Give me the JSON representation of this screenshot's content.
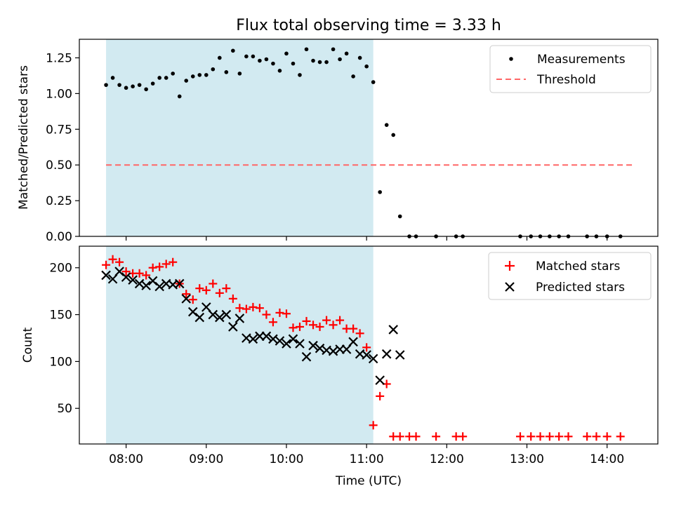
{
  "chart_data": [
    {
      "type": "scatter",
      "title": "Flux total observing time = 3.33 h",
      "xlabel": "",
      "ylabel": "Matched/Predicted stars",
      "ylim": [
        0,
        1.38
      ],
      "yticks": [
        "0.00",
        "0.25",
        "0.50",
        "0.75",
        "1.00",
        "1.25"
      ],
      "shaded_span": {
        "start": "07:45",
        "end": "11:05",
        "color": "#add8e6"
      },
      "legend_position": "top-right",
      "series": [
        {
          "name": "Measurements",
          "marker": "dot",
          "color": "#000000",
          "x": [
            "07:45",
            "07:50",
            "07:55",
            "08:00",
            "08:05",
            "08:10",
            "08:15",
            "08:20",
            "08:25",
            "08:30",
            "08:35",
            "08:40",
            "08:45",
            "08:50",
            "08:55",
            "09:00",
            "09:05",
            "09:10",
            "09:15",
            "09:20",
            "09:25",
            "09:30",
            "09:35",
            "09:40",
            "09:45",
            "09:50",
            "09:55",
            "10:00",
            "10:05",
            "10:10",
            "10:15",
            "10:20",
            "10:25",
            "10:30",
            "10:35",
            "10:40",
            "10:45",
            "10:50",
            "10:55",
            "11:00",
            "11:05",
            "11:10",
            "11:15",
            "11:20",
            "11:25",
            "11:32",
            "11:37",
            "11:52",
            "12:07",
            "12:12",
            "12:55",
            "13:03",
            "13:10",
            "13:17",
            "13:24",
            "13:31",
            "13:45",
            "13:52",
            "14:00",
            "14:10"
          ],
          "y": [
            1.06,
            1.11,
            1.06,
            1.04,
            1.05,
            1.06,
            1.03,
            1.07,
            1.11,
            1.11,
            1.14,
            0.98,
            1.09,
            1.12,
            1.13,
            1.13,
            1.17,
            1.25,
            1.15,
            1.3,
            1.14,
            1.26,
            1.26,
            1.23,
            1.24,
            1.21,
            1.16,
            1.28,
            1.21,
            1.13,
            1.31,
            1.23,
            1.22,
            1.22,
            1.31,
            1.24,
            1.28,
            1.12,
            1.25,
            1.19,
            1.08,
            0.31,
            0.78,
            0.71,
            0.14,
            0.0,
            0.0,
            0.0,
            0.0,
            0.0,
            0.0,
            0.0,
            0.0,
            0.0,
            0.0,
            0.0,
            0.0,
            0.0,
            0.0,
            0.0
          ]
        },
        {
          "name": "Threshold",
          "marker": "dashed-line",
          "color": "#ff6666",
          "x": [
            "07:45",
            "14:20"
          ],
          "y": [
            0.5,
            0.5
          ]
        }
      ]
    },
    {
      "type": "scatter",
      "title": "",
      "xlabel": "Time (UTC)",
      "ylabel": "Count",
      "ylim": [
        12,
        223
      ],
      "yticks": [
        "50",
        "100",
        "150",
        "200"
      ],
      "xlim": [
        "07:25",
        "14:38"
      ],
      "xticks": [
        "08:00",
        "09:00",
        "10:00",
        "11:00",
        "12:00",
        "13:00",
        "14:00"
      ],
      "shaded_span": {
        "start": "07:45",
        "end": "11:05",
        "color": "#add8e6"
      },
      "legend_position": "top-right",
      "series": [
        {
          "name": "Matched stars",
          "marker": "plus",
          "color": "#ff0000",
          "x": [
            "07:45",
            "07:50",
            "07:55",
            "08:00",
            "08:05",
            "08:10",
            "08:15",
            "08:20",
            "08:25",
            "08:30",
            "08:35",
            "08:40",
            "08:45",
            "08:50",
            "08:55",
            "09:00",
            "09:05",
            "09:10",
            "09:15",
            "09:20",
            "09:25",
            "09:30",
            "09:35",
            "09:40",
            "09:45",
            "09:50",
            "09:55",
            "10:00",
            "10:05",
            "10:10",
            "10:15",
            "10:20",
            "10:25",
            "10:30",
            "10:35",
            "10:40",
            "10:45",
            "10:50",
            "10:55",
            "11:00",
            "11:05",
            "11:10",
            "11:15",
            "11:20",
            "11:25",
            "11:32",
            "11:37",
            "11:52",
            "12:07",
            "12:12",
            "12:55",
            "13:03",
            "13:10",
            "13:17",
            "13:24",
            "13:31",
            "13:45",
            "13:52",
            "14:00",
            "14:10"
          ],
          "y": [
            203,
            209,
            206,
            196,
            194,
            194,
            192,
            200,
            201,
            204,
            206,
            183,
            172,
            166,
            178,
            176,
            183,
            173,
            178,
            167,
            157,
            156,
            158,
            157,
            150,
            142,
            152,
            151,
            136,
            137,
            143,
            139,
            137,
            144,
            139,
            144,
            135,
            135,
            130,
            115,
            32,
            63,
            76,
            20,
            20,
            20,
            20,
            20,
            20,
            20,
            20,
            20,
            20,
            20,
            20,
            20,
            20,
            20,
            20,
            20
          ]
        },
        {
          "name": "Predicted stars",
          "marker": "x",
          "color": "#000000",
          "x": [
            "07:45",
            "07:50",
            "07:55",
            "08:00",
            "08:05",
            "08:10",
            "08:15",
            "08:20",
            "08:25",
            "08:30",
            "08:35",
            "08:40",
            "08:45",
            "08:50",
            "08:55",
            "09:00",
            "09:05",
            "09:10",
            "09:15",
            "09:20",
            "09:25",
            "09:30",
            "09:35",
            "09:40",
            "09:45",
            "09:50",
            "09:55",
            "10:00",
            "10:05",
            "10:10",
            "10:15",
            "10:20",
            "10:25",
            "10:30",
            "10:35",
            "10:40",
            "10:45",
            "10:50",
            "10:55",
            "11:00",
            "11:05",
            "11:10",
            "11:15",
            "11:20",
            "11:25"
          ],
          "y": [
            192,
            188,
            196,
            190,
            187,
            183,
            181,
            186,
            180,
            183,
            182,
            183,
            167,
            153,
            147,
            158,
            150,
            147,
            150,
            137,
            146,
            125,
            124,
            127,
            127,
            124,
            122,
            119,
            124,
            119,
            105,
            117,
            114,
            112,
            111,
            113,
            113,
            121,
            108,
            107,
            103,
            80,
            108,
            134,
            107
          ]
        }
      ]
    }
  ]
}
